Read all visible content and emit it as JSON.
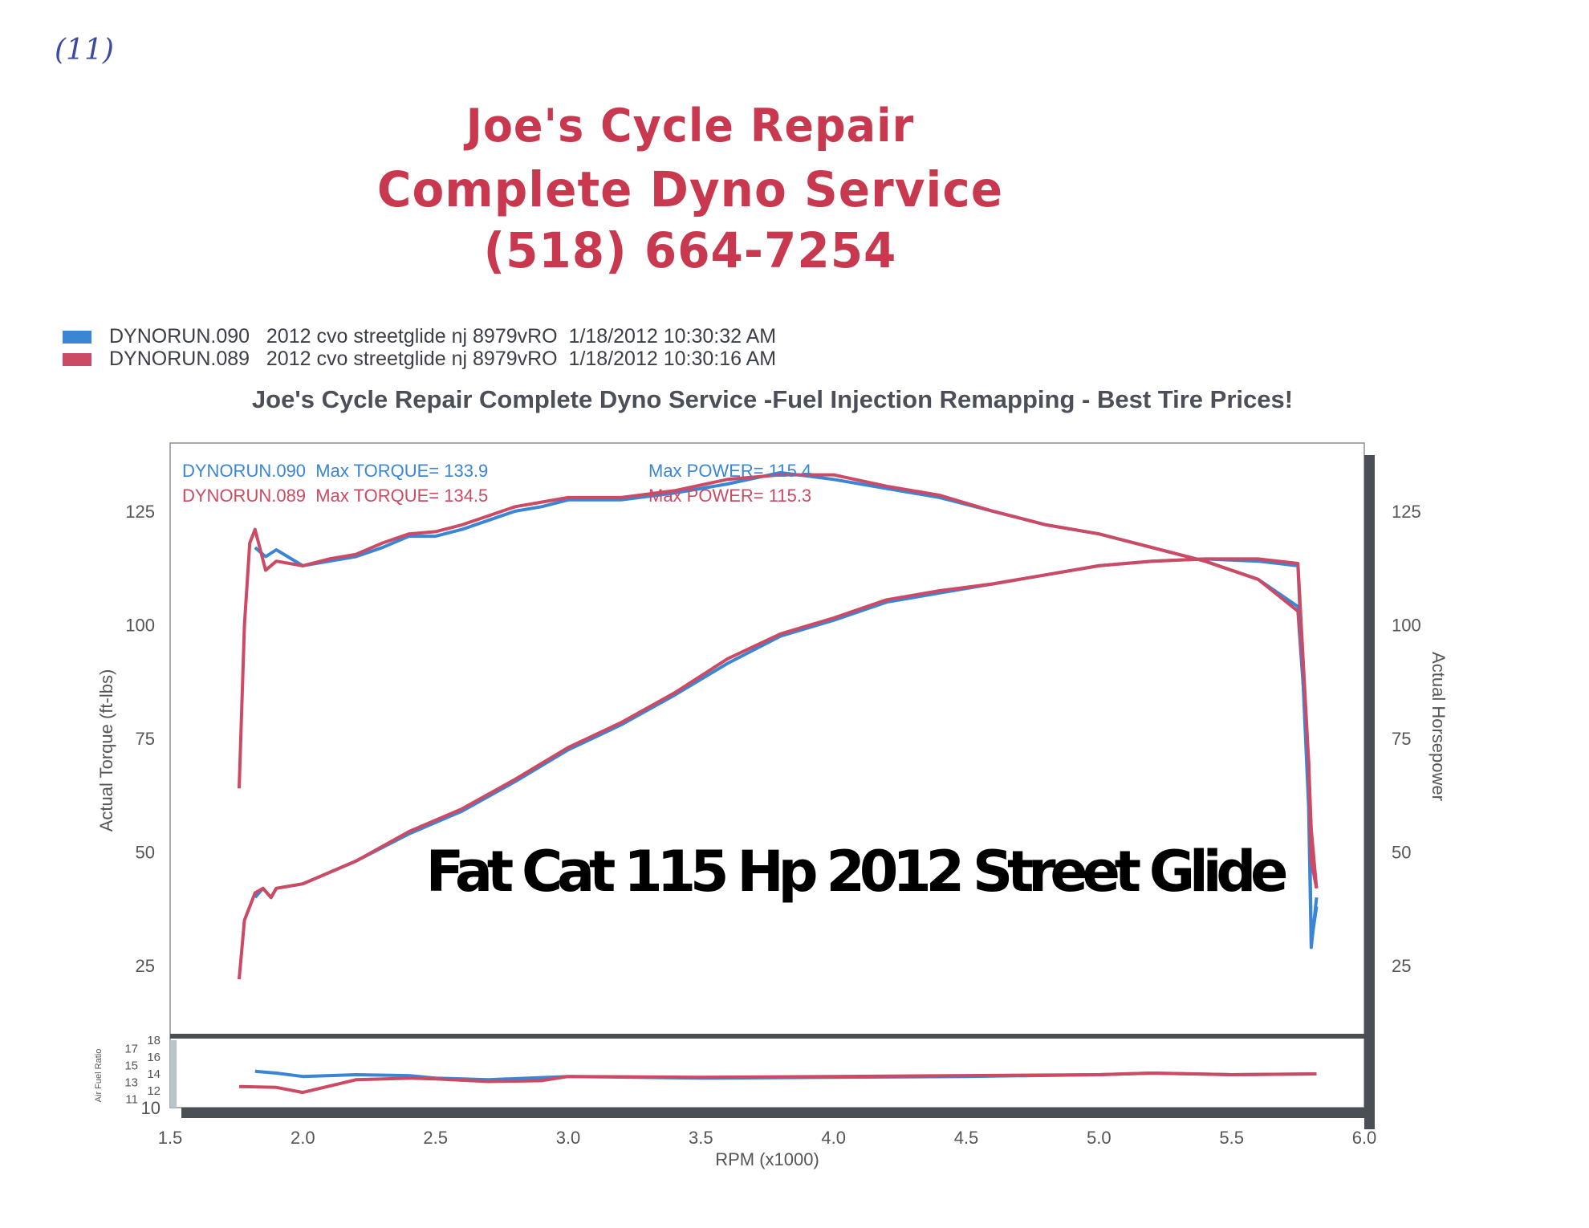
{
  "page": {
    "handwritten_mark": "(11)",
    "logo_lines": [
      "Joe's Cycle Repair",
      "Complete Dyno Service",
      "(518) 664-7254"
    ],
    "legend": [
      {
        "run": "DYNORUN.090",
        "description": "2012 cvo streetglide nj 8979vRO",
        "timestamp": "1/18/2012 10:30:32 AM",
        "color": "#3a86d4"
      },
      {
        "run": "DYNORUN.089",
        "description": "2012 cvo streetglide nj 8979vRO",
        "timestamp": "1/18/2012 10:30:16 AM",
        "color": "#cc4a63"
      }
    ],
    "subtitle": "Joe's Cycle Repair Complete Dyno Service -Fuel Injection Remapping - Best Tire Prices!",
    "annotation": "Fat Cat 115 Hp 2012 Street Glide",
    "max_labels": {
      "run090_torque": "DYNORUN.090  Max TORQUE= 133.9",
      "run089_torque": "DYNORUN.089  Max TORQUE= 134.5",
      "run090_power": "Max POWER= 115.4",
      "run089_power": "Max POWER= 115.3"
    }
  },
  "chart_data": [
    {
      "type": "line",
      "xlabel": "RPM (x1000)",
      "ylabel": "Actual Torque (ft-lbs)",
      "y2label": "Actual Horsepower",
      "xlim": [
        1.5,
        6.0
      ],
      "ylim": [
        10,
        140
      ],
      "xticks": [
        "1.5",
        "2.0",
        "2.5",
        "3.0",
        "3.5",
        "4.0",
        "4.5",
        "5.0",
        "5.5",
        "6.0"
      ],
      "yticks": [
        "25",
        "50",
        "75",
        "100",
        "125"
      ],
      "y2ticks": [
        "25",
        "50",
        "75",
        "100",
        "125"
      ],
      "grid": true,
      "series": [
        {
          "name": "DYNORUN.090",
          "measure": "torque",
          "color": "#3a86d4",
          "x": [
            1.82,
            1.86,
            1.9,
            2.0,
            2.1,
            2.2,
            2.3,
            2.4,
            2.5,
            2.6,
            2.7,
            2.8,
            2.9,
            3.0,
            3.2,
            3.4,
            3.6,
            3.8,
            4.0,
            4.2,
            4.4,
            4.6,
            4.8,
            5.0,
            5.2,
            5.4,
            5.6,
            5.75,
            5.79,
            5.8,
            5.82
          ],
          "y": [
            117,
            115,
            116.5,
            113,
            114,
            115,
            117,
            119.5,
            119.5,
            121,
            123,
            125,
            126,
            127.5,
            127.5,
            129,
            131,
            133.5,
            132,
            130,
            128,
            125,
            122,
            120,
            117,
            114,
            110,
            104,
            70,
            30,
            38
          ]
        },
        {
          "name": "DYNORUN.089",
          "measure": "torque",
          "color": "#cc4a63",
          "x": [
            1.76,
            1.78,
            1.8,
            1.82,
            1.86,
            1.9,
            2.0,
            2.1,
            2.2,
            2.3,
            2.4,
            2.5,
            2.6,
            2.7,
            2.8,
            2.9,
            3.0,
            3.2,
            3.4,
            3.6,
            3.8,
            4.0,
            4.2,
            4.4,
            4.6,
            4.8,
            5.0,
            5.2,
            5.4,
            5.6,
            5.75,
            5.79,
            5.8,
            5.82
          ],
          "y": [
            64,
            100,
            118,
            121,
            112,
            114,
            113,
            114.5,
            115.5,
            118,
            120,
            120.5,
            122,
            124,
            126,
            127,
            128,
            128,
            129.5,
            132,
            133,
            133,
            130.5,
            128.5,
            125,
            122,
            120,
            117,
            114,
            110,
            103,
            70,
            55,
            42
          ]
        },
        {
          "name": "DYNORUN.090",
          "measure": "power",
          "color": "#3a86d4",
          "x": [
            1.82,
            1.85,
            1.88,
            1.9,
            2.0,
            2.2,
            2.4,
            2.6,
            2.8,
            3.0,
            3.2,
            3.4,
            3.6,
            3.8,
            4.0,
            4.2,
            4.4,
            4.6,
            4.8,
            5.0,
            5.2,
            5.4,
            5.6,
            5.75,
            5.79,
            5.8,
            5.82
          ],
          "y": [
            40,
            42,
            40,
            42,
            43,
            48,
            54,
            59,
            65.5,
            72.5,
            78,
            84.5,
            91.5,
            97.5,
            101,
            105,
            107,
            109,
            111,
            113,
            114,
            114.5,
            114,
            113,
            60,
            29,
            40
          ]
        },
        {
          "name": "DYNORUN.089",
          "measure": "power",
          "color": "#cc4a63",
          "x": [
            1.76,
            1.78,
            1.82,
            1.85,
            1.88,
            1.9,
            2.0,
            2.2,
            2.4,
            2.6,
            2.8,
            3.0,
            3.2,
            3.4,
            3.6,
            3.8,
            4.0,
            4.2,
            4.4,
            4.6,
            4.8,
            5.0,
            5.2,
            5.4,
            5.6,
            5.75,
            5.79,
            5.8,
            5.82
          ],
          "y": [
            22,
            35,
            41,
            42,
            40,
            42,
            43,
            48,
            54.5,
            59.5,
            66,
            73,
            78.5,
            85,
            92.5,
            98,
            101.5,
            105.5,
            107.5,
            109,
            111,
            113,
            114,
            114.5,
            114.5,
            113.5,
            70,
            48,
            42
          ]
        }
      ]
    },
    {
      "type": "line",
      "ylabel": "Air Fuel Ratio",
      "xlim": [
        1.5,
        6.0
      ],
      "ylim": [
        10,
        18
      ],
      "yticks": [
        "10",
        "11",
        "12",
        "13",
        "14",
        "15",
        "16",
        "17",
        "18"
      ],
      "grid": true,
      "series": [
        {
          "name": "DYNORUN.090",
          "color": "#3a86d4",
          "x": [
            1.82,
            1.9,
            2.0,
            2.2,
            2.4,
            2.5,
            2.7,
            3.0,
            3.5,
            4.0,
            4.5,
            5.0,
            5.2,
            5.5,
            5.82
          ],
          "y": [
            14.3,
            14.1,
            13.7,
            13.9,
            13.8,
            13.5,
            13.3,
            13.7,
            13.5,
            13.6,
            13.7,
            13.9,
            14.1,
            13.9,
            14.0
          ]
        },
        {
          "name": "DYNORUN.089",
          "color": "#cc4a63",
          "x": [
            1.76,
            1.9,
            2.0,
            2.2,
            2.4,
            2.5,
            2.7,
            2.9,
            3.0,
            3.5,
            4.0,
            4.5,
            5.0,
            5.2,
            5.5,
            5.82
          ],
          "y": [
            12.5,
            12.4,
            11.8,
            13.3,
            13.5,
            13.4,
            13.1,
            13.2,
            13.7,
            13.6,
            13.7,
            13.8,
            13.9,
            14.1,
            13.9,
            14.0
          ]
        }
      ]
    }
  ]
}
